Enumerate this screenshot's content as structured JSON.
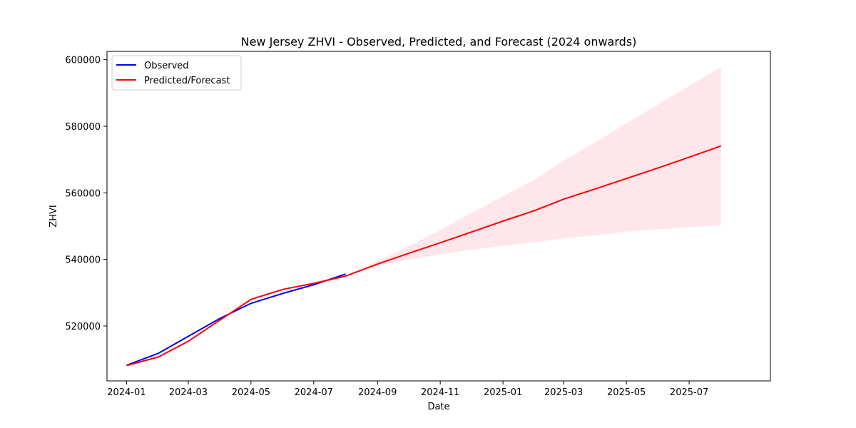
{
  "chart_data": {
    "type": "line",
    "title": "New Jersey ZHVI - Observed, Predicted, and Forecast (2024 onwards)",
    "xlabel": "Date",
    "ylabel": "ZHVI",
    "xlim": [
      "2023-12-13",
      "2025-09-18"
    ],
    "ylim": [
      503500,
      602500
    ],
    "x_ticks": [
      "2024-01",
      "2024-03",
      "2024-05",
      "2024-07",
      "2024-09",
      "2024-11",
      "2025-01",
      "2025-03",
      "2025-05",
      "2025-07"
    ],
    "y_ticks": [
      520000,
      540000,
      560000,
      580000,
      600000
    ],
    "legend": {
      "position": "top-left",
      "entries": [
        "Observed",
        "Predicted/Forecast"
      ]
    },
    "series": [
      {
        "name": "Observed",
        "color": "#0000ff",
        "x": [
          "2024-01-01",
          "2024-02-01",
          "2024-03-01",
          "2024-04-01",
          "2024-05-01",
          "2024-06-01",
          "2024-07-01",
          "2024-08-01"
        ],
        "values": [
          508200,
          511800,
          516900,
          522300,
          526800,
          529800,
          532400,
          535600
        ]
      },
      {
        "name": "Predicted/Forecast",
        "color": "#ff0000",
        "x": [
          "2024-01-01",
          "2024-02-01",
          "2024-03-01",
          "2024-04-01",
          "2024-05-01",
          "2024-06-01",
          "2024-07-01",
          "2024-08-01",
          "2024-09-01",
          "2024-10-01",
          "2024-11-01",
          "2024-12-01",
          "2025-01-01",
          "2025-02-01",
          "2025-03-01",
          "2025-04-01",
          "2025-05-01",
          "2025-06-01",
          "2025-07-01",
          "2025-08-01"
        ],
        "values": [
          508100,
          510700,
          515400,
          521800,
          528000,
          531000,
          532800,
          535000,
          538600,
          541800,
          545000,
          548200,
          551500,
          554700,
          558100,
          561200,
          564300,
          567500,
          570700,
          574100
        ]
      }
    ],
    "confidence_band": {
      "color": "#ffc0cb",
      "x": [
        "2024-08-01",
        "2024-09-01",
        "2024-10-01",
        "2024-11-01",
        "2024-12-01",
        "2025-01-01",
        "2025-02-01",
        "2025-03-01",
        "2025-04-01",
        "2025-05-01",
        "2025-06-01",
        "2025-07-01",
        "2025-08-01"
      ],
      "lower": [
        535000,
        538000,
        539900,
        541500,
        542900,
        544100,
        545200,
        546300,
        547300,
        548300,
        549100,
        549700,
        550300
      ],
      "upper": [
        535000,
        539400,
        543900,
        548800,
        553900,
        559000,
        564000,
        569700,
        575200,
        580900,
        586600,
        592100,
        597800
      ]
    }
  }
}
